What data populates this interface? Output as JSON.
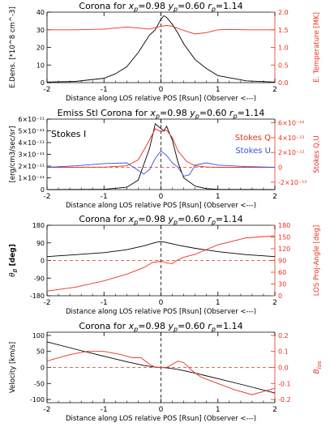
{
  "colors": {
    "axis": "#000000",
    "black_series": "#000000",
    "red": "#e8301c",
    "blue": "#3a4fe0",
    "zero_line_red": "#e8301c"
  },
  "chart_data": [
    {
      "type": "line",
      "title_parts": [
        "Corona for ",
        "x",
        "p",
        "=0.98 ",
        "y",
        "p",
        "=0.60 ",
        "r",
        "p",
        "=1.14"
      ],
      "xlabel": "Distance along LOS relative POS [Rsun] (Observer <---)",
      "xlim": [
        -2,
        2
      ],
      "xticks": [
        "-2",
        "-1",
        "0",
        "1",
        "2"
      ],
      "ylabel_left": "E.Dens. [*10^8 cm^-3]",
      "ylim_left": [
        0,
        40
      ],
      "yticks_left": [
        "0",
        "10",
        "20",
        "30",
        "40"
      ],
      "ylabel_right": "E. Temperature [MK]",
      "ylim_right": [
        0.0,
        2.0
      ],
      "yticks_right": [
        "0.0",
        "0.5",
        "1.0",
        "1.5",
        "2.0"
      ],
      "series": [
        {
          "axis": "left",
          "color": "black",
          "x": [
            -2,
            -1.5,
            -1.0,
            -0.8,
            -0.6,
            -0.4,
            -0.3,
            -0.2,
            -0.1,
            0.0,
            0.05,
            0.1,
            0.2,
            0.3,
            0.4,
            0.6,
            0.8,
            1.0,
            1.5,
            2.0
          ],
          "y": [
            0.3,
            0.7,
            2.5,
            5,
            9,
            17,
            22,
            27,
            30,
            36,
            38,
            37,
            33,
            28,
            22,
            13,
            8,
            4,
            1,
            0.3
          ]
        },
        {
          "axis": "right",
          "color": "red",
          "x": [
            -2,
            -1.5,
            -1.0,
            -0.6,
            -0.4,
            -0.2,
            -0.1,
            0.0,
            0.1,
            0.2,
            0.4,
            0.6,
            0.8,
            1.0,
            1.2,
            1.5,
            2.0
          ],
          "y": [
            1.5,
            1.5,
            1.52,
            1.58,
            1.55,
            1.52,
            1.56,
            1.6,
            1.62,
            1.6,
            1.48,
            1.38,
            1.42,
            1.5,
            1.51,
            1.5,
            1.5
          ]
        }
      ],
      "vline_x": 0
    },
    {
      "type": "line",
      "title_parts": [
        "Emiss Stl Corona for ",
        "x",
        "p",
        "=0.98 ",
        "y",
        "p",
        "=0.60 ",
        "r",
        "p",
        "=1.14"
      ],
      "xlabel": "Distance along LOS relative POS [Rsun] (Observer <---)",
      "xlim": [
        -2,
        2
      ],
      "xticks": [
        "-2",
        "-1",
        "0",
        "1",
        "2"
      ],
      "ylabel_left": "[erg/cm3/sec/sr]",
      "ylim_left": [
        0,
        6e-11
      ],
      "yticks_left": [
        "0",
        "1×10⁻¹¹",
        "2×10⁻¹¹",
        "3×10⁻¹¹",
        "4×10⁻¹¹",
        "5×10⁻¹¹",
        "6×10⁻¹¹"
      ],
      "ylabel_right": "Stokes Q,U",
      "ylim_right": [
        -3e-12,
        6.5e-12
      ],
      "yticks_right": [
        "-2×10⁻¹²",
        "0",
        "2×10⁻¹²",
        "4×10⁻¹²",
        "6×10⁻¹²"
      ],
      "legend": {
        "stokes_i": "Stokes I",
        "stokes_q": "Stokes Q",
        "stokes_u": "Stokes U"
      },
      "series": [
        {
          "name": "Stokes I",
          "axis": "left",
          "color": "black",
          "x": [
            -2,
            -1.0,
            -0.6,
            -0.4,
            -0.2,
            -0.1,
            0.0,
            0.05,
            0.1,
            0.2,
            0.3,
            0.4,
            0.6,
            0.8,
            1.0,
            2.0
          ],
          "y": [
            0,
            2e-13,
            2e-12,
            8e-12,
            3.5e-11,
            5.6e-11,
            5.2e-11,
            5e-11,
            5.4e-11,
            4.2e-11,
            2.3e-11,
            1e-11,
            3e-12,
            8e-13,
            2e-13,
            0
          ]
        },
        {
          "name": "Stokes Q",
          "axis": "right",
          "color": "red",
          "x": [
            -2,
            -1.0,
            -0.6,
            -0.4,
            -0.25,
            -0.1,
            0.0,
            0.1,
            0.2,
            0.3,
            0.45,
            0.6,
            0.8,
            1.0,
            2.0
          ],
          "y": [
            0,
            2e-14,
            2e-13,
            1e-12,
            3e-12,
            5.2e-12,
            4.8e-12,
            5e-12,
            4e-12,
            2.2e-12,
            8e-13,
            2e-13,
            5e-14,
            0,
            0
          ]
        },
        {
          "name": "Stokes U",
          "axis": "right",
          "color": "blue",
          "x": [
            -2,
            -1.5,
            -1.0,
            -0.6,
            -0.5,
            -0.3,
            -0.2,
            -0.1,
            0.0,
            0.1,
            0.2,
            0.3,
            0.4,
            0.5,
            0.6,
            0.8,
            1.0,
            1.5,
            2.0
          ],
          "y": [
            0,
            2e-13,
            5e-13,
            6e-13,
            1e-13,
            -9e-13,
            -3e-13,
            1.2e-12,
            2.2e-12,
            1.6e-12,
            6e-13,
            0.0,
            -1.2e-12,
            -1e-12,
            3e-13,
            6e-13,
            3e-13,
            1e-13,
            0
          ]
        }
      ],
      "hline_y_right": 0,
      "vline_x": 0
    },
    {
      "type": "line",
      "title_parts": [
        "Corona for ",
        "x",
        "p",
        "=0.98 ",
        "y",
        "p",
        "=0.60 ",
        "r",
        "p",
        "=1.14"
      ],
      "xlabel": "Distance along LOS relative POS [Rsun] (Observer <---)",
      "xlim": [
        -2,
        2
      ],
      "xticks": [
        "-2",
        "-1",
        "0",
        "1",
        "2"
      ],
      "ylabel_left_sym": "θ",
      "ylabel_left_sub": "B",
      "ylabel_left_unit": " [deg]",
      "ylim_left": [
        -180,
        180
      ],
      "yticks_left": [
        "-180",
        "-90",
        "0",
        "90",
        "180"
      ],
      "ylabel_right": "LOS Proj-Angle [deg]",
      "ylim_right": [
        0,
        180
      ],
      "yticks_right": [
        "0",
        "30",
        "60",
        "90",
        "120",
        "150",
        "180"
      ],
      "series": [
        {
          "axis": "left",
          "color": "black",
          "x": [
            -2,
            -1.5,
            -1.0,
            -0.6,
            -0.3,
            -0.1,
            0.0,
            0.1,
            0.3,
            0.6,
            1.0,
            1.5,
            2.0
          ],
          "y": [
            20,
            30,
            40,
            55,
            75,
            92,
            97,
            92,
            78,
            62,
            45,
            30,
            20
          ]
        },
        {
          "axis": "right",
          "color": "red",
          "x": [
            -2,
            -1.5,
            -1.0,
            -0.6,
            -0.3,
            -0.15,
            0.0,
            0.1,
            0.2,
            0.3,
            0.4,
            0.6,
            0.8,
            1.0,
            1.5,
            2.0
          ],
          "y": [
            12,
            22,
            38,
            55,
            72,
            85,
            88,
            84,
            82,
            92,
            98,
            106,
            118,
            130,
            148,
            153
          ]
        }
      ],
      "hline_y_left": 0,
      "vline_x": 0
    },
    {
      "type": "line",
      "title_parts": [
        "Corona for ",
        "x",
        "p",
        "=0.98 ",
        "y",
        "p",
        "=0.60 ",
        "r",
        "p",
        "=1.14"
      ],
      "xlabel": "Distance along LOS relative POS [Rsun] (Observer <---)",
      "xlim": [
        -2,
        2
      ],
      "xticks": [
        "-2",
        "-1",
        "0",
        "1",
        "2"
      ],
      "ylabel_left": "Velocity [km/s]",
      "ylim_left": [
        -110,
        110
      ],
      "yticks_left": [
        "-100",
        "-50",
        "0",
        "50",
        "100"
      ],
      "ylabel_right_sym": "B",
      "ylabel_right_sub": "los",
      "ylim_right": [
        -0.22,
        0.22
      ],
      "yticks_right": [
        "-0.2",
        "-0.1",
        "0.0",
        "0.1",
        "0.2"
      ],
      "series": [
        {
          "axis": "left",
          "color": "black",
          "x": [
            -2,
            -1.5,
            -1.0,
            -0.6,
            -0.3,
            -0.1,
            0.0,
            0.1,
            0.3,
            0.6,
            1.0,
            1.5,
            2.0
          ],
          "y": [
            80,
            57,
            35,
            18,
            6,
            1,
            0,
            -1,
            -6,
            -18,
            -35,
            -57,
            -80
          ]
        },
        {
          "axis": "right",
          "color": "red",
          "x": [
            -2,
            -1.6,
            -1.3,
            -1.0,
            -0.7,
            -0.5,
            -0.35,
            -0.2,
            -0.1,
            0.0,
            0.1,
            0.2,
            0.3,
            0.4,
            0.55,
            0.7,
            1.0,
            1.3,
            1.6,
            1.8,
            2.0
          ],
          "y": [
            0.04,
            0.08,
            0.1,
            0.1,
            0.08,
            0.06,
            0.06,
            0.02,
            0.0,
            0.0,
            0.0,
            0.02,
            0.04,
            0.03,
            -0.02,
            -0.06,
            -0.1,
            -0.14,
            -0.17,
            -0.15,
            -0.13
          ]
        }
      ],
      "hline_y_left": 0,
      "vline_x": 0
    }
  ]
}
